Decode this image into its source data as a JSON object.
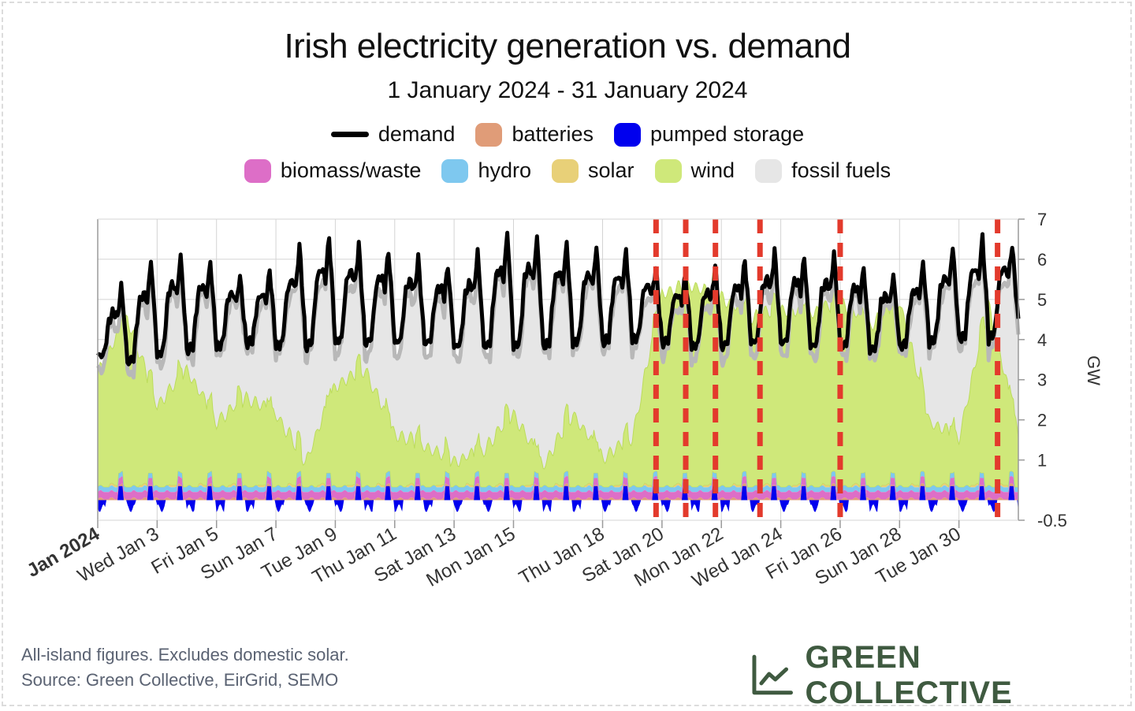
{
  "chart_data": {
    "type": "area",
    "title": "Irish electricity generation vs. demand",
    "subtitle": "1 January 2024 - 31 January 2024",
    "ylabel": "GW",
    "ylim": [
      -0.5,
      7
    ],
    "y_ticks": [
      {
        "value": -0.5,
        "label": "-0.5"
      },
      {
        "value": 1,
        "label": "1"
      },
      {
        "value": 2,
        "label": "2"
      },
      {
        "value": 3,
        "label": "3"
      },
      {
        "value": 4,
        "label": "4"
      },
      {
        "value": 5,
        "label": "5"
      },
      {
        "value": 6,
        "label": "6"
      },
      {
        "value": 7,
        "label": "7"
      }
    ],
    "x_range_days": [
      1,
      32
    ],
    "x_ticks": [
      {
        "day": 1,
        "label": "Jan 2024",
        "bold": true
      },
      {
        "day": 3,
        "label": "Wed Jan 3"
      },
      {
        "day": 5,
        "label": "Fri Jan 5"
      },
      {
        "day": 7,
        "label": "Sun Jan 7"
      },
      {
        "day": 9,
        "label": "Tue Jan 9"
      },
      {
        "day": 11,
        "label": "Thu Jan 11"
      },
      {
        "day": 13,
        "label": "Sat Jan 13"
      },
      {
        "day": 15,
        "label": "Mon Jan 15"
      },
      {
        "day": 18,
        "label": "Thu Jan 18"
      },
      {
        "day": 20,
        "label": "Sat Jan 20"
      },
      {
        "day": 22,
        "label": "Mon Jan 22"
      },
      {
        "day": 24,
        "label": "Wed Jan 24"
      },
      {
        "day": 26,
        "label": "Fri Jan 26"
      },
      {
        "day": 28,
        "label": "Sun Jan 28"
      },
      {
        "day": 30,
        "label": "Tue Jan 30"
      }
    ],
    "legend": {
      "row1": [
        {
          "key": "demand",
          "label": "demand",
          "color": "#000000",
          "style": "line"
        },
        {
          "key": "batteries",
          "label": "batteries",
          "color": "#e09c78"
        },
        {
          "key": "pumped",
          "label": "pumped storage",
          "color": "#0000ee"
        }
      ],
      "row2": [
        {
          "key": "biomass",
          "label": "biomass/waste",
          "color": "#dd6ec7"
        },
        {
          "key": "hydro",
          "label": "hydro",
          "color": "#7ec8ef"
        },
        {
          "key": "solar",
          "label": "solar",
          "color": "#e8d078"
        },
        {
          "key": "wind",
          "label": "wind",
          "color": "#cfe87a"
        },
        {
          "key": "fossil",
          "label": "fossil fuels",
          "color": "#e6e6e6"
        }
      ]
    },
    "wind_daily_gw": [
      2.8,
      4.2,
      2.0,
      2.9,
      1.6,
      2.2,
      1.8,
      0.6,
      2.5,
      2.9,
      1.3,
      1.0,
      0.6,
      0.9,
      1.8,
      0.5,
      1.8,
      0.7,
      1.2,
      4.8,
      5.0,
      4.7,
      4.2,
      4.4,
      4.3,
      4.6,
      4.0,
      4.6,
      1.6,
      1.2,
      4.5,
      1.3
    ],
    "demand_daily_peak_gw": [
      4.8,
      5.5,
      6.1,
      6.1,
      5.9,
      5.5,
      5.8,
      6.5,
      6.6,
      6.3,
      6.2,
      6.0,
      5.8,
      6.3,
      6.8,
      6.5,
      6.4,
      6.3,
      6.2,
      5.7,
      5.6,
      5.9,
      6.0,
      6.3,
      6.0,
      6.2,
      5.7,
      5.6,
      6.0,
      6.4,
      6.6,
      6.3
    ],
    "demand_daily_min_gw": [
      3.6,
      3.4,
      3.6,
      3.7,
      3.8,
      3.9,
      3.8,
      3.8,
      3.9,
      3.9,
      3.9,
      3.9,
      3.8,
      3.8,
      3.8,
      3.8,
      3.9,
      3.9,
      4.0,
      3.9,
      3.8,
      3.8,
      3.9,
      3.9,
      3.8,
      3.8,
      3.7,
      3.8,
      3.9,
      4.0,
      4.0,
      4.4
    ],
    "demand_color": "#000000",
    "generation_total_color": "#b8b8b8",
    "highlight_color": "#e33a2c",
    "highlight_days": [
      19.8,
      20.8,
      21.8,
      23.3,
      26.0,
      31.3
    ],
    "grid": true
  },
  "footnote": {
    "line1": "All-island figures. Excludes domestic solar.",
    "line2": "Source: Green Collective, EirGrid, SEMO"
  },
  "brand": {
    "name": "GREEN COLLECTIVE",
    "icon": "line-chart-icon",
    "color": "#3f5a40"
  }
}
